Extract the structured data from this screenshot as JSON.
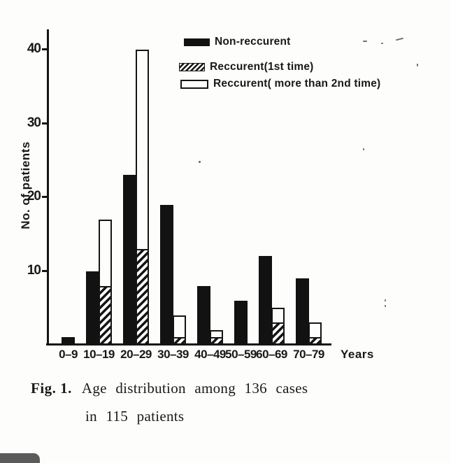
{
  "figure_caption": {
    "fig_label": "Fig. 1.",
    "line1": "Age distribution among 136 cases",
    "line2": "in 115 patients"
  },
  "chart_data": {
    "type": "bar",
    "title": "Age distribution among 136 cases in 115 patients",
    "ylabel": "No. of patients",
    "xlabel": "Years",
    "categories": [
      "0–9",
      "10–19",
      "20–29",
      "30–39",
      "40–49",
      "50–59",
      "60–69",
      "70–79"
    ],
    "yticks": [
      10,
      20,
      30,
      40
    ],
    "ylim": [
      0,
      42
    ],
    "grid": false,
    "legend_position": "upper-right",
    "series": [
      {
        "name": "Non-reccurent",
        "style": "solid-black",
        "values": [
          1,
          10,
          23,
          19,
          8,
          6,
          12,
          9
        ]
      },
      {
        "name": "Reccurent(1st time)",
        "style": "hatched",
        "values": [
          0,
          8,
          13,
          1,
          1,
          0,
          3,
          1
        ]
      },
      {
        "name": "Reccurent( more than 2nd time)",
        "style": "white-outline",
        "values": [
          0,
          17,
          40,
          4,
          2,
          0,
          5,
          3
        ]
      }
    ],
    "layout_hint": "hatched and outline bars share one slot immediately right of each solid bar; the outline bar is drawn behind the hatched bar"
  },
  "colors": {
    "ink": "#151515",
    "paper": "#fdfdfc",
    "corner_tab": "#5b5b5b"
  }
}
